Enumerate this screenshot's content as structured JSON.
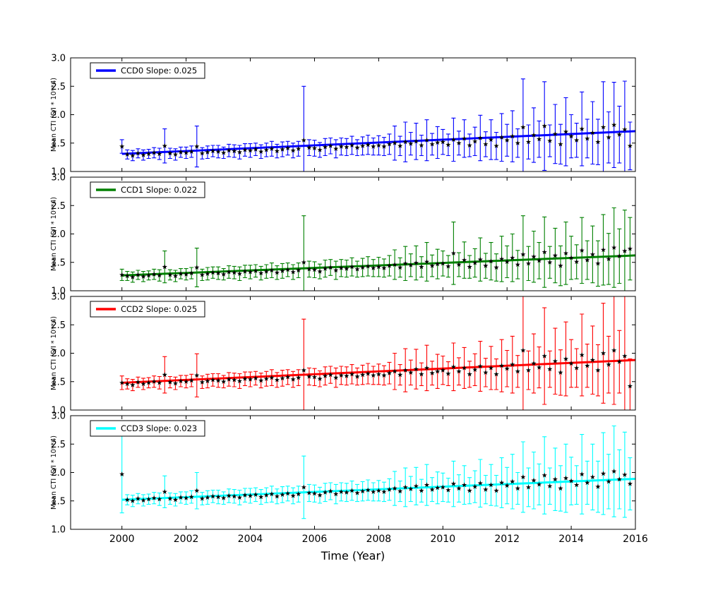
{
  "chart_data": {
    "type": "errorbar",
    "title": "",
    "xlabel": "Time (Year)",
    "ylabel": "Mean CTI (S/I * 10**4)",
    "xlim": [
      1998.4,
      2016.0
    ],
    "ylim": [
      1.0,
      3.0
    ],
    "x_ticks": [
      2000,
      2002,
      2004,
      2006,
      2008,
      2010,
      2012,
      2014,
      2016
    ],
    "x_tick_labels": [
      "2000",
      "2002",
      "2004",
      "2006",
      "2008",
      "2010",
      "2012",
      "2014",
      "2016"
    ],
    "y_ticks": [
      1.0,
      1.5,
      2.0,
      2.5,
      3.0
    ],
    "y_tick_labels": [
      "1.0",
      "1.5",
      "2.0",
      "2.5",
      "3.0"
    ],
    "legend_position": "upper left",
    "grid": false,
    "marker": {
      "shape": "star",
      "color": "#000000"
    },
    "x": [
      2000.0,
      2000.167,
      2000.333,
      2000.5,
      2000.667,
      2000.833,
      2001.0,
      2001.167,
      2001.333,
      2001.5,
      2001.667,
      2001.833,
      2002.0,
      2002.167,
      2002.333,
      2002.5,
      2002.667,
      2002.833,
      2003.0,
      2003.167,
      2003.333,
      2003.5,
      2003.667,
      2003.833,
      2004.0,
      2004.167,
      2004.333,
      2004.5,
      2004.667,
      2004.833,
      2005.0,
      2005.167,
      2005.333,
      2005.5,
      2005.667,
      2005.833,
      2006.0,
      2006.167,
      2006.333,
      2006.5,
      2006.667,
      2006.833,
      2007.0,
      2007.167,
      2007.333,
      2007.5,
      2007.667,
      2007.833,
      2008.0,
      2008.167,
      2008.333,
      2008.5,
      2008.667,
      2008.833,
      2009.0,
      2009.167,
      2009.333,
      2009.5,
      2009.667,
      2009.833,
      2010.0,
      2010.167,
      2010.333,
      2010.5,
      2010.667,
      2010.833,
      2011.0,
      2011.167,
      2011.333,
      2011.5,
      2011.667,
      2011.833,
      2012.0,
      2012.167,
      2012.333,
      2012.5,
      2012.667,
      2012.833,
      2013.0,
      2013.167,
      2013.333,
      2013.5,
      2013.667,
      2013.833,
      2014.0,
      2014.167,
      2014.333,
      2014.5,
      2014.667,
      2014.833,
      2015.0,
      2015.167,
      2015.333,
      2015.5,
      2015.667,
      2015.833
    ],
    "series": [
      {
        "name": "CCD0",
        "legend_label": "CCD0 Slope: 0.025",
        "color": "#0000ff",
        "fit": {
          "slope": 0.025,
          "intercept_at_2000": 1.31
        },
        "y": [
          1.44,
          1.3,
          1.28,
          1.32,
          1.29,
          1.31,
          1.33,
          1.31,
          1.45,
          1.32,
          1.3,
          1.34,
          1.33,
          1.35,
          1.44,
          1.32,
          1.34,
          1.36,
          1.35,
          1.33,
          1.37,
          1.36,
          1.34,
          1.38,
          1.37,
          1.39,
          1.35,
          1.38,
          1.4,
          1.36,
          1.39,
          1.41,
          1.37,
          1.4,
          1.55,
          1.42,
          1.41,
          1.38,
          1.43,
          1.45,
          1.4,
          1.44,
          1.43,
          1.46,
          1.42,
          1.45,
          1.47,
          1.44,
          1.46,
          1.44,
          1.48,
          1.5,
          1.45,
          1.52,
          1.49,
          1.53,
          1.46,
          1.55,
          1.48,
          1.51,
          1.52,
          1.47,
          1.56,
          1.5,
          1.58,
          1.46,
          1.53,
          1.59,
          1.48,
          1.56,
          1.45,
          1.6,
          1.55,
          1.62,
          1.5,
          1.78,
          1.52,
          1.64,
          1.57,
          1.8,
          1.54,
          1.66,
          1.48,
          1.7,
          1.62,
          1.55,
          1.75,
          1.58,
          1.68,
          1.52,
          1.78,
          1.6,
          1.82,
          1.65,
          1.74,
          1.45
        ],
        "yerr": [
          0.12,
          0.08,
          0.09,
          0.08,
          0.09,
          0.08,
          0.09,
          0.1,
          0.3,
          0.09,
          0.1,
          0.09,
          0.1,
          0.1,
          0.36,
          0.1,
          0.11,
          0.1,
          0.11,
          0.1,
          0.11,
          0.11,
          0.12,
          0.11,
          0.12,
          0.11,
          0.12,
          0.12,
          0.13,
          0.12,
          0.13,
          0.12,
          0.13,
          0.13,
          0.95,
          0.14,
          0.14,
          0.13,
          0.15,
          0.14,
          0.16,
          0.15,
          0.15,
          0.16,
          0.14,
          0.16,
          0.17,
          0.15,
          0.17,
          0.16,
          0.18,
          0.3,
          0.17,
          0.35,
          0.2,
          0.32,
          0.18,
          0.36,
          0.19,
          0.28,
          0.22,
          0.19,
          0.38,
          0.21,
          0.33,
          0.2,
          0.25,
          0.4,
          0.22,
          0.35,
          0.24,
          0.42,
          0.28,
          0.45,
          0.25,
          0.85,
          0.3,
          0.48,
          0.32,
          0.78,
          0.28,
          0.52,
          0.35,
          0.6,
          0.38,
          0.3,
          0.65,
          0.34,
          0.55,
          0.4,
          0.8,
          0.45,
          0.75,
          0.5,
          0.85,
          0.42
        ]
      },
      {
        "name": "CCD1",
        "legend_label": "CCD1 Slope: 0.022",
        "color": "#008000",
        "fit": {
          "slope": 0.022,
          "intercept_at_2000": 1.27
        },
        "y": [
          1.28,
          1.26,
          1.24,
          1.28,
          1.25,
          1.27,
          1.29,
          1.27,
          1.42,
          1.28,
          1.26,
          1.3,
          1.29,
          1.31,
          1.41,
          1.28,
          1.3,
          1.32,
          1.31,
          1.29,
          1.33,
          1.32,
          1.3,
          1.34,
          1.33,
          1.35,
          1.31,
          1.34,
          1.36,
          1.32,
          1.35,
          1.37,
          1.33,
          1.36,
          1.5,
          1.38,
          1.37,
          1.34,
          1.39,
          1.41,
          1.36,
          1.4,
          1.39,
          1.42,
          1.38,
          1.41,
          1.43,
          1.4,
          1.42,
          1.4,
          1.44,
          1.46,
          1.41,
          1.48,
          1.45,
          1.49,
          1.42,
          1.51,
          1.44,
          1.47,
          1.48,
          1.43,
          1.66,
          1.46,
          1.54,
          1.42,
          1.49,
          1.55,
          1.44,
          1.52,
          1.41,
          1.56,
          1.51,
          1.58,
          1.46,
          1.64,
          1.48,
          1.6,
          1.53,
          1.68,
          1.5,
          1.62,
          1.44,
          1.66,
          1.58,
          1.51,
          1.71,
          1.54,
          1.64,
          1.48,
          1.72,
          1.56,
          1.76,
          1.61,
          1.7,
          1.74
        ],
        "yerr": [
          0.1,
          0.08,
          0.09,
          0.08,
          0.09,
          0.08,
          0.09,
          0.1,
          0.28,
          0.09,
          0.1,
          0.09,
          0.1,
          0.1,
          0.34,
          0.1,
          0.11,
          0.1,
          0.11,
          0.1,
          0.11,
          0.11,
          0.12,
          0.11,
          0.12,
          0.11,
          0.12,
          0.12,
          0.13,
          0.12,
          0.13,
          0.12,
          0.13,
          0.13,
          0.82,
          0.14,
          0.14,
          0.13,
          0.15,
          0.14,
          0.16,
          0.15,
          0.15,
          0.16,
          0.14,
          0.16,
          0.17,
          0.15,
          0.17,
          0.16,
          0.18,
          0.26,
          0.17,
          0.3,
          0.2,
          0.3,
          0.18,
          0.34,
          0.19,
          0.26,
          0.22,
          0.19,
          0.55,
          0.21,
          0.32,
          0.2,
          0.25,
          0.38,
          0.22,
          0.33,
          0.24,
          0.4,
          0.28,
          0.42,
          0.25,
          0.68,
          0.3,
          0.45,
          0.32,
          0.62,
          0.28,
          0.48,
          0.35,
          0.55,
          0.38,
          0.3,
          0.58,
          0.34,
          0.5,
          0.4,
          0.62,
          0.45,
          0.7,
          0.48,
          0.72,
          0.55
        ]
      },
      {
        "name": "CCD2",
        "legend_label": "CCD2 Slope: 0.025",
        "color": "#ff0000",
        "fit": {
          "slope": 0.025,
          "intercept_at_2000": 1.48
        },
        "y": [
          1.48,
          1.46,
          1.44,
          1.49,
          1.46,
          1.48,
          1.5,
          1.48,
          1.62,
          1.49,
          1.47,
          1.51,
          1.5,
          1.52,
          1.61,
          1.49,
          1.51,
          1.53,
          1.52,
          1.5,
          1.54,
          1.53,
          1.51,
          1.55,
          1.54,
          1.56,
          1.52,
          1.55,
          1.57,
          1.53,
          1.56,
          1.58,
          1.54,
          1.57,
          1.7,
          1.59,
          1.58,
          1.55,
          1.6,
          1.62,
          1.57,
          1.61,
          1.6,
          1.63,
          1.59,
          1.62,
          1.64,
          1.61,
          1.63,
          1.61,
          1.65,
          1.68,
          1.62,
          1.7,
          1.66,
          1.72,
          1.63,
          1.74,
          1.65,
          1.68,
          1.7,
          1.64,
          1.76,
          1.68,
          1.74,
          1.63,
          1.71,
          1.77,
          1.66,
          1.74,
          1.63,
          1.78,
          1.73,
          1.8,
          1.68,
          2.05,
          1.7,
          1.82,
          1.75,
          1.95,
          1.72,
          1.86,
          1.66,
          1.9,
          1.82,
          1.74,
          1.97,
          1.78,
          1.88,
          1.7,
          2.0,
          1.8,
          2.05,
          1.85,
          1.95,
          1.42
        ],
        "yerr": [
          0.12,
          0.09,
          0.1,
          0.09,
          0.1,
          0.09,
          0.1,
          0.11,
          0.32,
          0.1,
          0.11,
          0.1,
          0.11,
          0.11,
          0.38,
          0.11,
          0.12,
          0.11,
          0.12,
          0.11,
          0.12,
          0.12,
          0.13,
          0.12,
          0.13,
          0.12,
          0.13,
          0.13,
          0.14,
          0.13,
          0.14,
          0.13,
          0.14,
          0.14,
          0.9,
          0.15,
          0.15,
          0.14,
          0.16,
          0.15,
          0.17,
          0.16,
          0.16,
          0.17,
          0.15,
          0.17,
          0.18,
          0.16,
          0.18,
          0.17,
          0.19,
          0.32,
          0.18,
          0.38,
          0.22,
          0.35,
          0.2,
          0.4,
          0.21,
          0.3,
          0.25,
          0.21,
          0.42,
          0.24,
          0.36,
          0.23,
          0.28,
          0.44,
          0.25,
          0.38,
          0.27,
          0.46,
          0.32,
          0.5,
          0.28,
          1.3,
          0.34,
          0.52,
          0.36,
          0.85,
          0.32,
          0.58,
          0.4,
          0.65,
          0.42,
          0.34,
          0.72,
          0.38,
          0.6,
          0.45,
          0.88,
          0.5,
          0.95,
          0.55,
          1.1,
          0.48
        ]
      },
      {
        "name": "CCD3",
        "legend_label": "CCD3 Slope: 0.023",
        "color": "#00ffff",
        "fit": {
          "slope": 0.023,
          "intercept_at_2000": 1.52
        },
        "y": [
          1.97,
          1.52,
          1.5,
          1.54,
          1.51,
          1.53,
          1.55,
          1.53,
          1.66,
          1.54,
          1.52,
          1.56,
          1.55,
          1.57,
          1.68,
          1.54,
          1.56,
          1.58,
          1.57,
          1.55,
          1.59,
          1.58,
          1.56,
          1.6,
          1.59,
          1.61,
          1.57,
          1.6,
          1.62,
          1.58,
          1.61,
          1.63,
          1.59,
          1.62,
          1.74,
          1.64,
          1.63,
          1.6,
          1.65,
          1.67,
          1.62,
          1.66,
          1.65,
          1.68,
          1.64,
          1.67,
          1.69,
          1.66,
          1.68,
          1.66,
          1.7,
          1.72,
          1.67,
          1.74,
          1.71,
          1.76,
          1.68,
          1.78,
          1.7,
          1.73,
          1.74,
          1.69,
          1.8,
          1.72,
          1.78,
          1.68,
          1.75,
          1.81,
          1.7,
          1.78,
          1.68,
          1.82,
          1.77,
          1.84,
          1.72,
          1.92,
          1.74,
          1.86,
          1.79,
          1.95,
          1.76,
          1.88,
          1.72,
          1.9,
          1.85,
          1.78,
          1.97,
          1.82,
          1.92,
          1.75,
          1.98,
          1.84,
          2.02,
          1.88,
          1.96,
          1.8
        ],
        "yerr": [
          0.68,
          0.09,
          0.1,
          0.09,
          0.1,
          0.09,
          0.1,
          0.11,
          0.28,
          0.1,
          0.11,
          0.1,
          0.11,
          0.11,
          0.32,
          0.11,
          0.12,
          0.11,
          0.12,
          0.11,
          0.12,
          0.12,
          0.13,
          0.12,
          0.13,
          0.12,
          0.13,
          0.13,
          0.14,
          0.13,
          0.14,
          0.13,
          0.14,
          0.14,
          0.55,
          0.15,
          0.15,
          0.14,
          0.16,
          0.15,
          0.17,
          0.16,
          0.16,
          0.17,
          0.15,
          0.17,
          0.18,
          0.16,
          0.18,
          0.17,
          0.19,
          0.3,
          0.18,
          0.34,
          0.22,
          0.33,
          0.2,
          0.36,
          0.21,
          0.28,
          0.25,
          0.21,
          0.4,
          0.24,
          0.34,
          0.23,
          0.28,
          0.42,
          0.25,
          0.36,
          0.27,
          0.44,
          0.32,
          0.48,
          0.28,
          0.62,
          0.34,
          0.5,
          0.36,
          0.68,
          0.32,
          0.55,
          0.4,
          0.6,
          0.42,
          0.34,
          0.7,
          0.38,
          0.58,
          0.45,
          0.72,
          0.48,
          0.8,
          0.52,
          0.75,
          0.46
        ]
      }
    ]
  }
}
